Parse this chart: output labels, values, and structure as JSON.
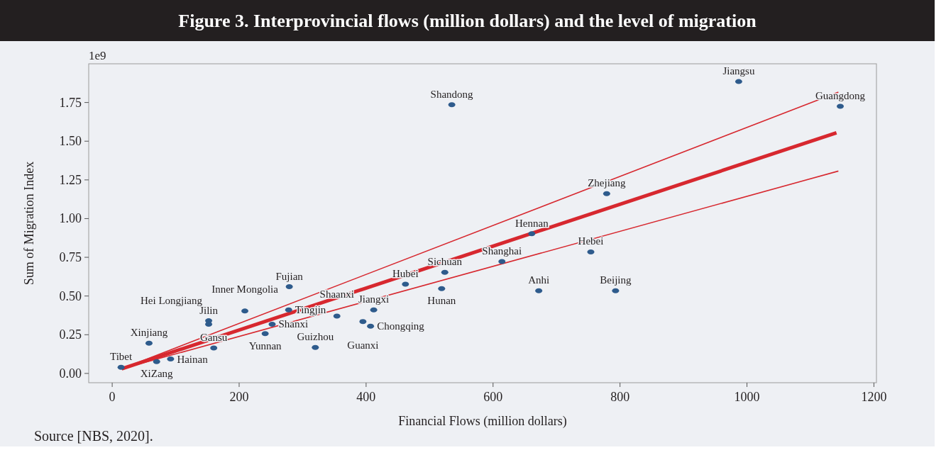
{
  "chart_data": {
    "type": "scatter",
    "title": "Figure 3. Interprovincial flows (million dollars) and the level of migration",
    "xlabel": "Financial Flows (million dollars)",
    "ylabel": "Sum of Migration Index",
    "annotations": [
      "1e9",
      "Source [NBS, 2020]."
    ],
    "xlim": [
      -37,
      1204
    ],
    "xticks": [
      0,
      200,
      400,
      600,
      800,
      1000,
      1200
    ],
    "ylim": [
      -0.06,
      2.0
    ],
    "yticks": [
      {
        "value": 0,
        "label": "0.00"
      },
      {
        "value": 0.25,
        "label": "0.25"
      },
      {
        "value": 0.5,
        "label": "0.50"
      },
      {
        "value": 0.75,
        "label": "0.75"
      },
      {
        "value": 1,
        "label": "1.00"
      },
      {
        "value": 1.25,
        "label": "1.25"
      },
      {
        "value": 1.5,
        "label": "1.50"
      },
      {
        "value": 1.75,
        "label": "1.75"
      }
    ],
    "grid": false,
    "marker": "circle",
    "series": [
      {
        "color": "#2e5b8c",
        "x": [
          14,
          70,
          92,
          58,
          160,
          152,
          152,
          209,
          241,
          252,
          279,
          278,
          320,
          354,
          395,
          407,
          412,
          462,
          987,
          535,
          1147,
          779,
          661,
          754,
          614,
          524,
          519,
          672,
          793
        ],
        "values": [
          0.04,
          0.076,
          0.093,
          0.195,
          0.164,
          0.34,
          0.318,
          0.403,
          0.257,
          0.318,
          0.56,
          0.41,
          0.168,
          0.37,
          0.335,
          0.305,
          0.41,
          0.576,
          1.885,
          1.736,
          1.725,
          1.161,
          0.902,
          0.785,
          0.723,
          0.653,
          0.548,
          0.534,
          0.534
        ],
        "value_labels": [
          "Tibet",
          "XiZang",
          "Hainan",
          "Xinjiang",
          "Gansu",
          "Jilin",
          "Hei Longjiang",
          "Inner Mongolia",
          "Yunnan",
          "Shanxi",
          "Fujian",
          "Tingjin",
          "Guizhou",
          "Shaanxi",
          "Guanxi",
          "Chongqing",
          "Jiangxi",
          "Hubei",
          "Jiangsu",
          "Shandong",
          "Guangdong",
          "Zhejiang",
          "Hennan",
          "Hebei",
          "Shanghai",
          "Sichuan",
          "Hunan",
          "Anhi",
          "Beijing"
        ]
      },
      {
        "type": "line",
        "marker": "none",
        "color": "#d7282f",
        "x": [
          15,
          1141
        ],
        "values": [
          0.03,
          1.554
        ]
      },
      {
        "type": "line",
        "marker": "none",
        "color": "#d7282f",
        "x": [
          15,
          1144
        ],
        "values": [
          0.03,
          1.817
        ]
      },
      {
        "type": "line",
        "marker": "none",
        "color": "#d7282f",
        "x": [
          15,
          1144
        ],
        "values": [
          0.03,
          1.307
        ]
      }
    ]
  }
}
